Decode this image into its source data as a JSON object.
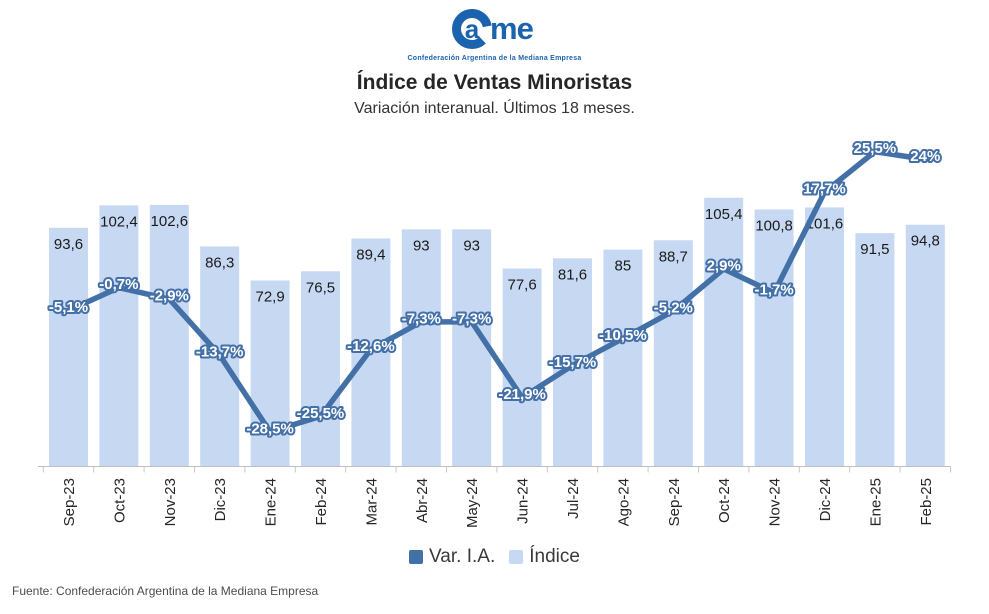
{
  "logo": {
    "text_a": "a",
    "text_me": "me",
    "tagline": "Confederación Argentina de la Mediana Empresa",
    "color": "#1b63ae"
  },
  "header": {
    "title": "Índice de Ventas Minoristas",
    "subtitle": "Variación interanual. Últimos 18 meses."
  },
  "legend": {
    "items": [
      {
        "label": "Var. I.A.",
        "color": "#4470a8"
      },
      {
        "label": "Índice",
        "color": "#c7d9f2"
      }
    ]
  },
  "footer": {
    "source": "Fuente: Confederación Argentina de la Mediana Empresa"
  },
  "colors": {
    "bar_fill": "#c7d9f2",
    "line": "#4470a8",
    "axis": "#bfbfbf",
    "tick": "#c9c9c9",
    "bar_value_text": "#1a1a1a",
    "axis_label_text": "#262626"
  },
  "chart_data": {
    "type": "combo-bar-line",
    "title": "Índice de Ventas Minoristas",
    "subtitle": "Variación interanual. Últimos 18 meses.",
    "categories": [
      "Sep-23",
      "Oct-23",
      "Nov-23",
      "Dic-23",
      "Ene-24",
      "Feb-24",
      "Mar-24",
      "Abr-24",
      "May-24",
      "Jun-24",
      "Jul-24",
      "Ago-24",
      "Sep-24",
      "Oct-24",
      "Nov-24",
      "Dic-24",
      "Ene-25",
      "Feb-25"
    ],
    "series": [
      {
        "name": "Var. I.A.",
        "type": "line",
        "unit": "%",
        "color": "#4470a8",
        "values": [
          -5.1,
          -0.7,
          -2.9,
          -13.7,
          -28.5,
          -25.5,
          -12.6,
          -7.3,
          -7.3,
          -21.9,
          -15.7,
          -10.5,
          -5.2,
          2.9,
          -1.7,
          17.7,
          25.5,
          24
        ],
        "labels": [
          "-5,1%",
          "-0,7%",
          "-2,9%",
          "-13,7%",
          "-28,5%",
          "-25,5%",
          "-12,6%",
          "-7,3%",
          "-7,3%",
          "-21,9%",
          "-15,7%",
          "-10,5%",
          "-5,2%",
          "2,9%",
          "-1,7%",
          "17,7%",
          "25,5%",
          "24%"
        ]
      },
      {
        "name": "Índice",
        "type": "bar",
        "color": "#c7d9f2",
        "values": [
          93.6,
          102.4,
          102.6,
          86.3,
          72.9,
          76.5,
          89.4,
          93,
          93,
          77.6,
          81.6,
          85,
          88.7,
          105.4,
          100.8,
          101.6,
          91.5,
          94.8
        ],
        "labels": [
          "93,6",
          "102,4",
          "102,6",
          "86,3",
          "72,9",
          "76,5",
          "89,4",
          "93",
          "93",
          "77,6",
          "81,6",
          "85",
          "88,7",
          "105,4",
          "100,8",
          "101,6",
          "91,5",
          "94,8"
        ]
      }
    ],
    "legend_position": "bottom",
    "bar_axis_min": 0,
    "grid": false,
    "x_tick_rotation": -90,
    "bar_value_label_position": "inside-top",
    "line_value_label_position": "on-point"
  }
}
